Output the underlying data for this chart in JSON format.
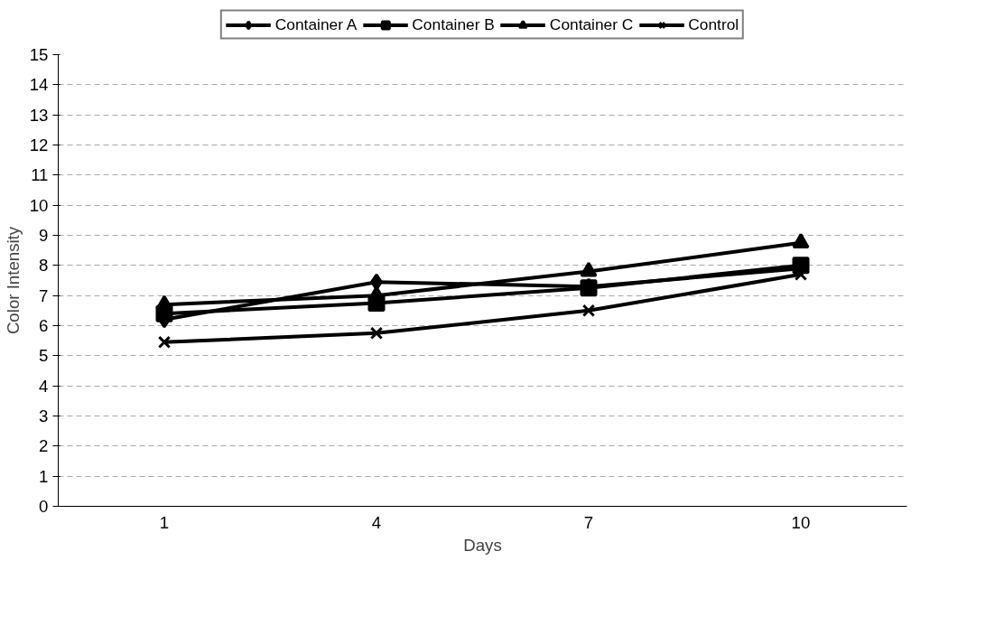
{
  "chart_data": {
    "type": "line",
    "xlabel": "Days",
    "ylabel": "Color Intensity",
    "categories": [
      "1",
      "4",
      "7",
      "10"
    ],
    "series": [
      {
        "name": "Container A",
        "color": "#000000",
        "marker": "diamond",
        "values": [
          6.2,
          7.45,
          7.3,
          7.9
        ]
      },
      {
        "name": "Container B",
        "color": "#000000",
        "marker": "square",
        "values": [
          6.4,
          6.75,
          7.25,
          8.0
        ]
      },
      {
        "name": "Container C",
        "color": "#000000",
        "marker": "triangle",
        "values": [
          6.7,
          7.0,
          7.8,
          8.75
        ]
      },
      {
        "name": "Control",
        "color": "#000000",
        "marker": "cross",
        "values": [
          5.45,
          5.75,
          6.5,
          7.7
        ]
      }
    ],
    "ylim": [
      0,
      15
    ],
    "yticks": [
      0,
      1,
      2,
      3,
      4,
      5,
      6,
      7,
      8,
      9,
      10,
      11,
      12,
      13,
      14,
      15
    ],
    "grid": "y",
    "legend": "top",
    "line_style": "solid"
  }
}
